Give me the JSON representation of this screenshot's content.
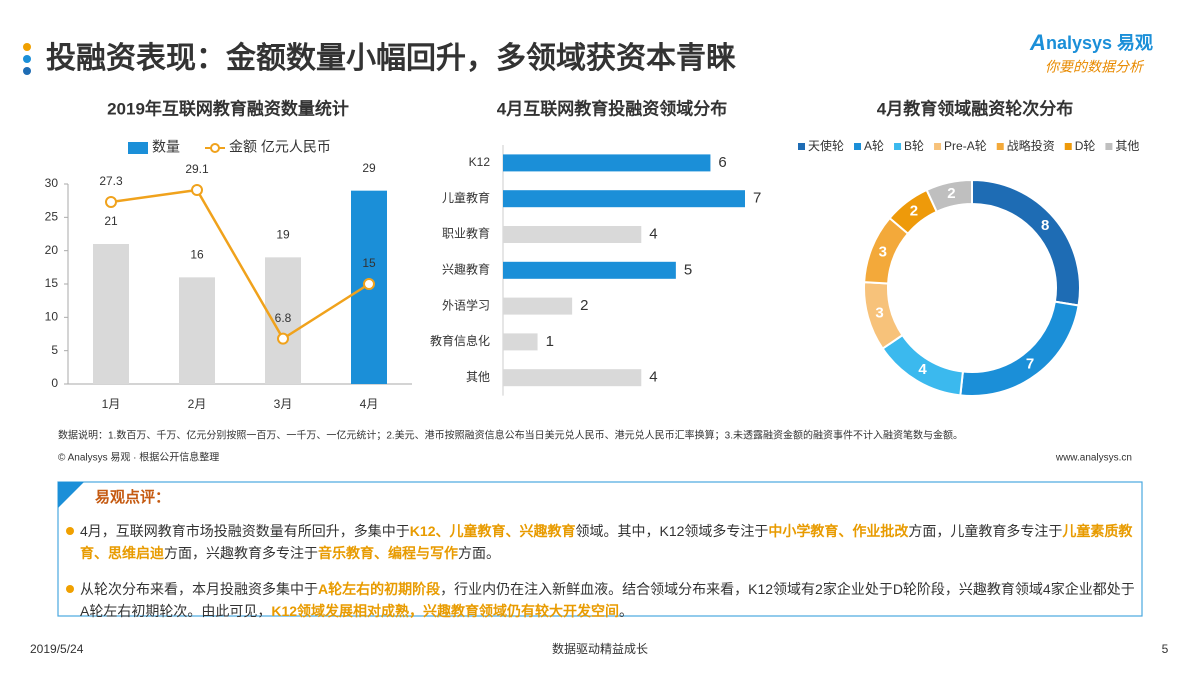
{
  "header": {
    "title": "投融资表现：金额数量小幅回升，多领域获资本青睐",
    "logo": "nalysys 易观",
    "logo_initial": "A",
    "slogan": "你要的数据分析"
  },
  "chart_data": [
    {
      "type": "combo",
      "title": "2019年互联网教育融资数量统计",
      "categories": [
        "1月",
        "2月",
        "3月",
        "4月"
      ],
      "ylim": [
        0,
        30
      ],
      "yticks": [
        0,
        5,
        10,
        15,
        20,
        25,
        30
      ],
      "grid": false,
      "series": [
        {
          "name": "数量",
          "type": "bar",
          "color": "#1b8fd8",
          "bar_colors": [
            "#d9d9d9",
            "#d9d9d9",
            "#d9d9d9",
            "#1b8fd8"
          ],
          "values": [
            21,
            16,
            19,
            29
          ]
        },
        {
          "name": "金额 亿元人民币",
          "type": "line",
          "color": "#f0a21c",
          "values": [
            27.3,
            29.1,
            6.8,
            15
          ]
        }
      ]
    },
    {
      "type": "hbar",
      "title": "4月互联网教育投融资领域分布",
      "categories": [
        "K12",
        "儿童教育",
        "职业教育",
        "兴趣教育",
        "外语学习",
        "教育信息化",
        "其他"
      ],
      "values": [
        6,
        7,
        4,
        5,
        2,
        1,
        4
      ],
      "colors": [
        "#1b8fd8",
        "#1b8fd8",
        "#d9d9d9",
        "#1b8fd8",
        "#d9d9d9",
        "#d9d9d9",
        "#d9d9d9"
      ]
    },
    {
      "type": "donut",
      "title": "4月教育领域融资轮次分布",
      "categories": [
        "天使轮",
        "A轮",
        "B轮",
        "Pre-A轮",
        "战略投资",
        "D轮",
        "其他"
      ],
      "values": [
        8,
        7,
        4,
        3,
        3,
        2,
        2
      ],
      "colors": [
        "#1e6cb4",
        "#1b8fd8",
        "#3bb9ee",
        "#f7c27a",
        "#f3a93a",
        "#ee9a0a",
        "#bfbfbf"
      ],
      "legend": "top"
    }
  ],
  "notes": {
    "description": "数据说明：1.数百万、千万、亿元分别按照一百万、一千万、一亿元统计；2.美元、港币按照融资信息公布当日美元兑人民币、港元兑人民币汇率换算；3.未透露融资金额的融资事件不计入融资笔数与金额。",
    "source": "© Analysys 易观 · 根据公开信息整理",
    "url": "www.analysys.cn"
  },
  "comment": {
    "heading": "易观点评：",
    "paragraphs": [
      {
        "segments": [
          {
            "text": "4月，互联网教育市场投融资数量有所回升，多集中于",
            "highlight": false
          },
          {
            "text": "K12、儿童教育、兴趣教育",
            "highlight": true
          },
          {
            "text": "领域。其中，K12领域多专注于",
            "highlight": false
          },
          {
            "text": "中小学教育、作业批改",
            "highlight": true
          },
          {
            "text": "方面，儿童教育多专注于",
            "highlight": false
          },
          {
            "text": "儿童素质教育、思维启迪",
            "highlight": true
          },
          {
            "text": "方面，兴趣教育多专注于",
            "highlight": false
          },
          {
            "text": "音乐教育、编程与写作",
            "highlight": true
          },
          {
            "text": "方面。",
            "highlight": false
          }
        ]
      },
      {
        "segments": [
          {
            "text": "从轮次分布来看，本月投融资多集中于",
            "highlight": false
          },
          {
            "text": "A轮左右的初期阶段",
            "highlight": true
          },
          {
            "text": "，行业内仍在注入新鲜血液。结合领域分布来看，K12领域有2家企业处于D轮阶段，兴趣教育领域4家企业都处于A轮左右初期轮次。由此可见，",
            "highlight": false
          },
          {
            "text": "K12领域发展相对成熟，兴趣教育领域仍有较大开发空间",
            "highlight": true
          },
          {
            "text": "。",
            "highlight": false
          }
        ]
      }
    ]
  },
  "footer": {
    "date": "2019/5/24",
    "slogan": "数据驱动精益成长",
    "page": "5"
  }
}
